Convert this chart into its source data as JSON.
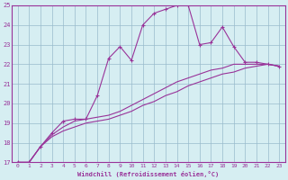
{
  "xlabel": "Windchill (Refroidissement éolien,°C)",
  "xlim": [
    -0.5,
    23.5
  ],
  "ylim": [
    17,
    25
  ],
  "yticks": [
    17,
    18,
    19,
    20,
    21,
    22,
    23,
    24,
    25
  ],
  "xticks": [
    0,
    1,
    2,
    3,
    4,
    5,
    6,
    7,
    8,
    9,
    10,
    11,
    12,
    13,
    14,
    15,
    16,
    17,
    18,
    19,
    20,
    21,
    22,
    23
  ],
  "bg_color": "#cce8ee",
  "plot_bg_color": "#d6eef2",
  "line_color": "#993399",
  "grid_color": "#99bbcc",
  "line1_x": [
    0,
    1,
    2,
    3,
    4,
    5,
    6,
    7,
    8,
    9,
    10,
    11,
    12,
    13,
    14,
    15,
    16,
    17,
    18,
    19,
    20,
    21,
    22,
    23
  ],
  "line1_y": [
    17.0,
    17.0,
    17.8,
    18.5,
    19.1,
    19.2,
    19.2,
    20.4,
    22.3,
    22.9,
    22.2,
    24.0,
    24.6,
    24.8,
    25.0,
    25.0,
    23.0,
    23.1,
    23.9,
    22.9,
    22.1,
    22.1,
    22.0,
    21.9
  ],
  "line2_x": [
    0,
    1,
    2,
    3,
    4,
    5,
    6,
    7,
    8,
    9,
    10,
    11,
    12,
    13,
    14,
    15,
    16,
    17,
    18,
    19,
    20,
    21,
    22,
    23
  ],
  "line2_y": [
    17.0,
    17.0,
    17.8,
    18.4,
    18.8,
    19.1,
    19.2,
    19.3,
    19.4,
    19.6,
    19.9,
    20.2,
    20.5,
    20.8,
    21.1,
    21.3,
    21.5,
    21.7,
    21.8,
    22.0,
    22.0,
    22.0,
    22.0,
    21.9
  ],
  "line3_x": [
    0,
    1,
    2,
    3,
    4,
    5,
    6,
    7,
    8,
    9,
    10,
    11,
    12,
    13,
    14,
    15,
    16,
    17,
    18,
    19,
    20,
    21,
    22,
    23
  ],
  "line3_y": [
    17.0,
    17.0,
    17.8,
    18.3,
    18.6,
    18.8,
    19.0,
    19.1,
    19.2,
    19.4,
    19.6,
    19.9,
    20.1,
    20.4,
    20.6,
    20.9,
    21.1,
    21.3,
    21.5,
    21.6,
    21.8,
    21.9,
    22.0,
    21.9
  ]
}
